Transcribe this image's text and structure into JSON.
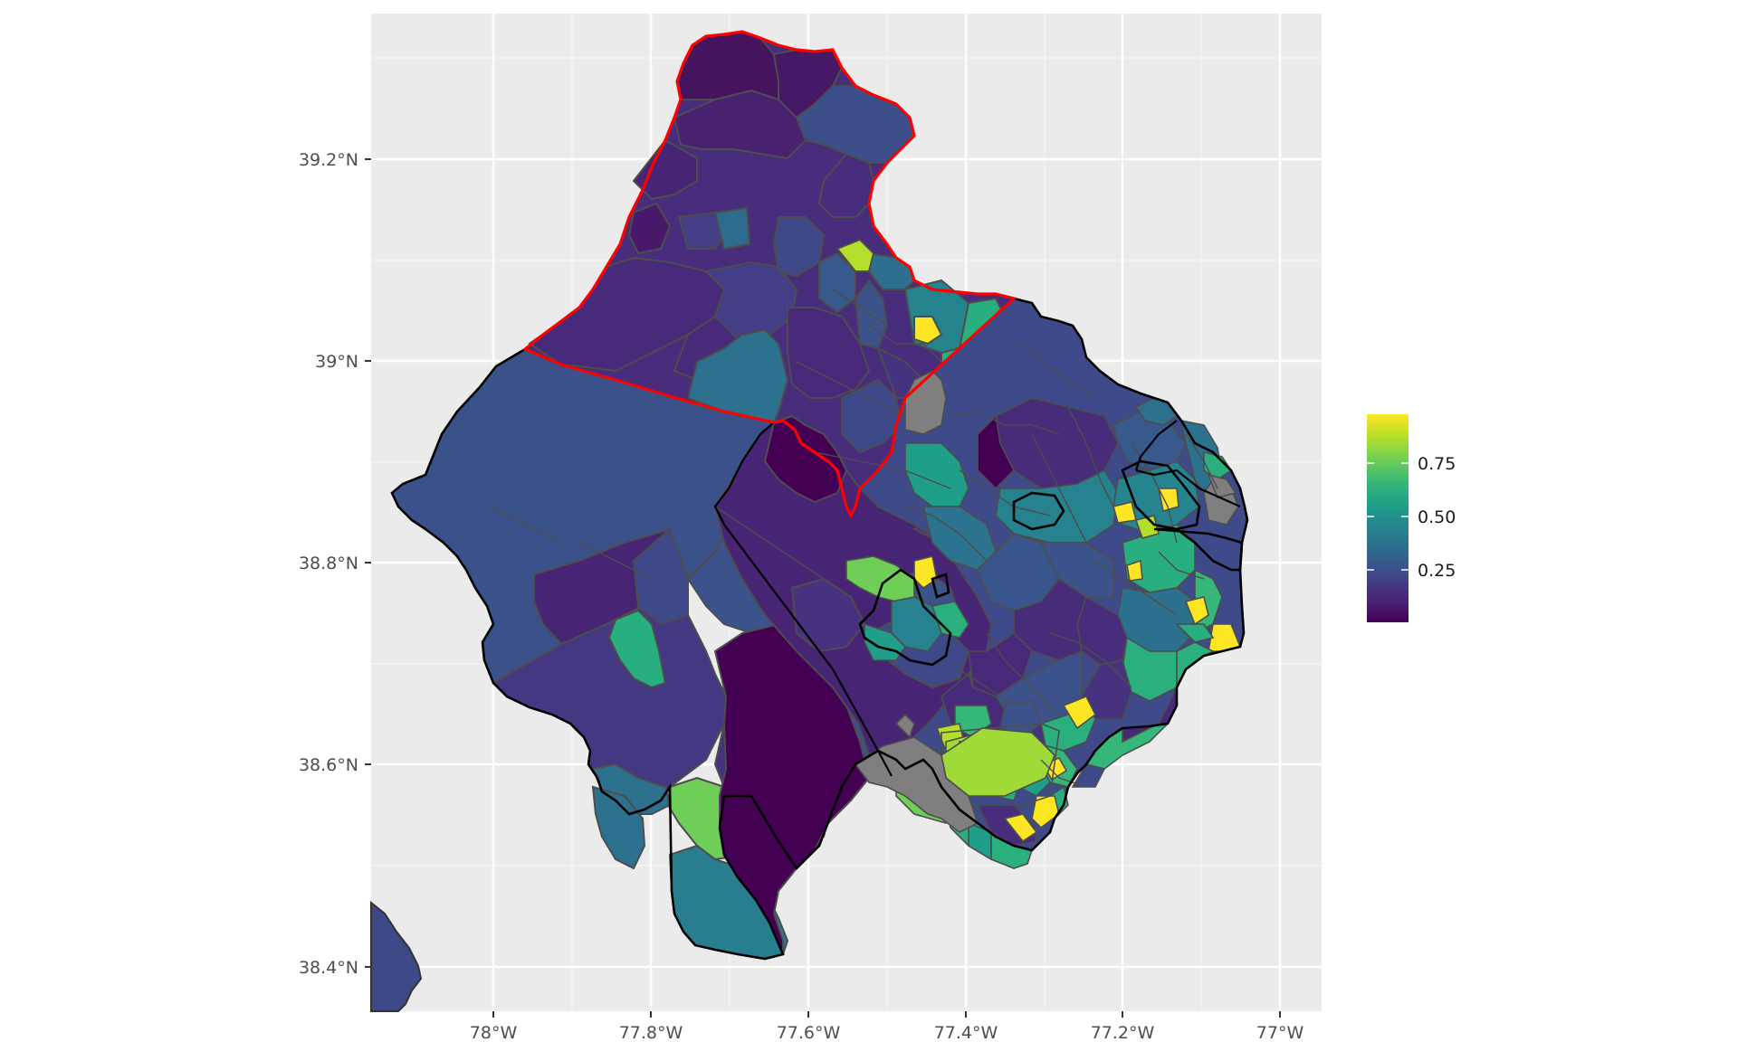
{
  "map": {
    "type": "choropleth",
    "x_axis": {
      "ticks": [
        "78°W",
        "77.8°W",
        "77.6°W",
        "77.4°W",
        "77.2°W",
        "77°W"
      ],
      "lon_values": [
        -78.0,
        -77.8,
        -77.6,
        -77.4,
        -77.2,
        -77.0
      ],
      "range": [
        -78.155,
        -76.945
      ]
    },
    "y_axis": {
      "ticks": [
        "39.2°N",
        "39°N",
        "38.8°N",
        "38.6°N",
        "38.4°N"
      ],
      "lat_values": [
        39.2,
        39.0,
        38.8,
        38.6,
        38.4
      ],
      "range": [
        38.357,
        39.345
      ]
    },
    "grid": true,
    "colors": {
      "panel_background": "#ebebeb",
      "grid_line": "#ffffff",
      "tract_border": "#4d4d4d",
      "county_border": "#000000",
      "highlight_border": "#ff0000",
      "missing_value": "#7f7f7f"
    },
    "legend": {
      "position": "right",
      "scale": "viridis",
      "ticks": [
        "0.75",
        "0.50",
        "0.25"
      ],
      "tick_values": [
        0.75,
        0.5,
        0.25
      ],
      "range": [
        0.0,
        1.0
      ],
      "gradient_colors": [
        "#fde725",
        "#b5de2b",
        "#6ece58",
        "#35b779",
        "#1f9e89",
        "#26828e",
        "#31688e",
        "#3e4989",
        "#482878",
        "#440154"
      ]
    }
  }
}
